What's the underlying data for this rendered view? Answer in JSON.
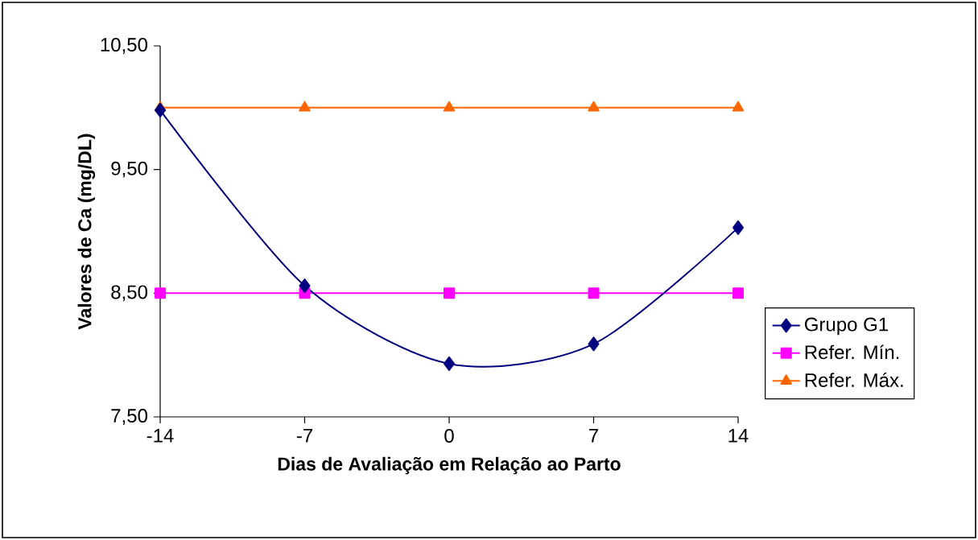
{
  "chart_data": {
    "type": "line",
    "xlabel": "Dias de Avaliação em Relação ao Parto",
    "ylabel": "Valores de Ca (mg/DL)",
    "x": [
      -14,
      -7,
      0,
      7,
      14
    ],
    "series": [
      {
        "name": "Grupo G1",
        "color": "#000080",
        "marker": "diamond",
        "values": [
          9.98,
          8.56,
          7.93,
          8.09,
          9.03
        ]
      },
      {
        "name": "Refer. Mín.",
        "color": "#ff00ff",
        "marker": "square",
        "values": [
          8.5,
          8.5,
          8.5,
          8.5,
          8.5
        ]
      },
      {
        "name": "Refer. Máx.",
        "color": "#ff6600",
        "marker": "triangle",
        "values": [
          10.0,
          10.0,
          10.0,
          10.0,
          10.0
        ]
      }
    ],
    "xlim": [
      -14,
      14
    ],
    "xticks": [
      -14,
      -7,
      0,
      7,
      14
    ],
    "ylim": [
      7.5,
      10.5
    ],
    "yticks": [
      {
        "value": 7.5,
        "label": "7,50"
      },
      {
        "value": 8.5,
        "label": "8,50"
      },
      {
        "value": 9.5,
        "label": "9,50"
      },
      {
        "value": 10.5,
        "label": "10,50"
      }
    ],
    "grid": false,
    "legend": "right"
  }
}
